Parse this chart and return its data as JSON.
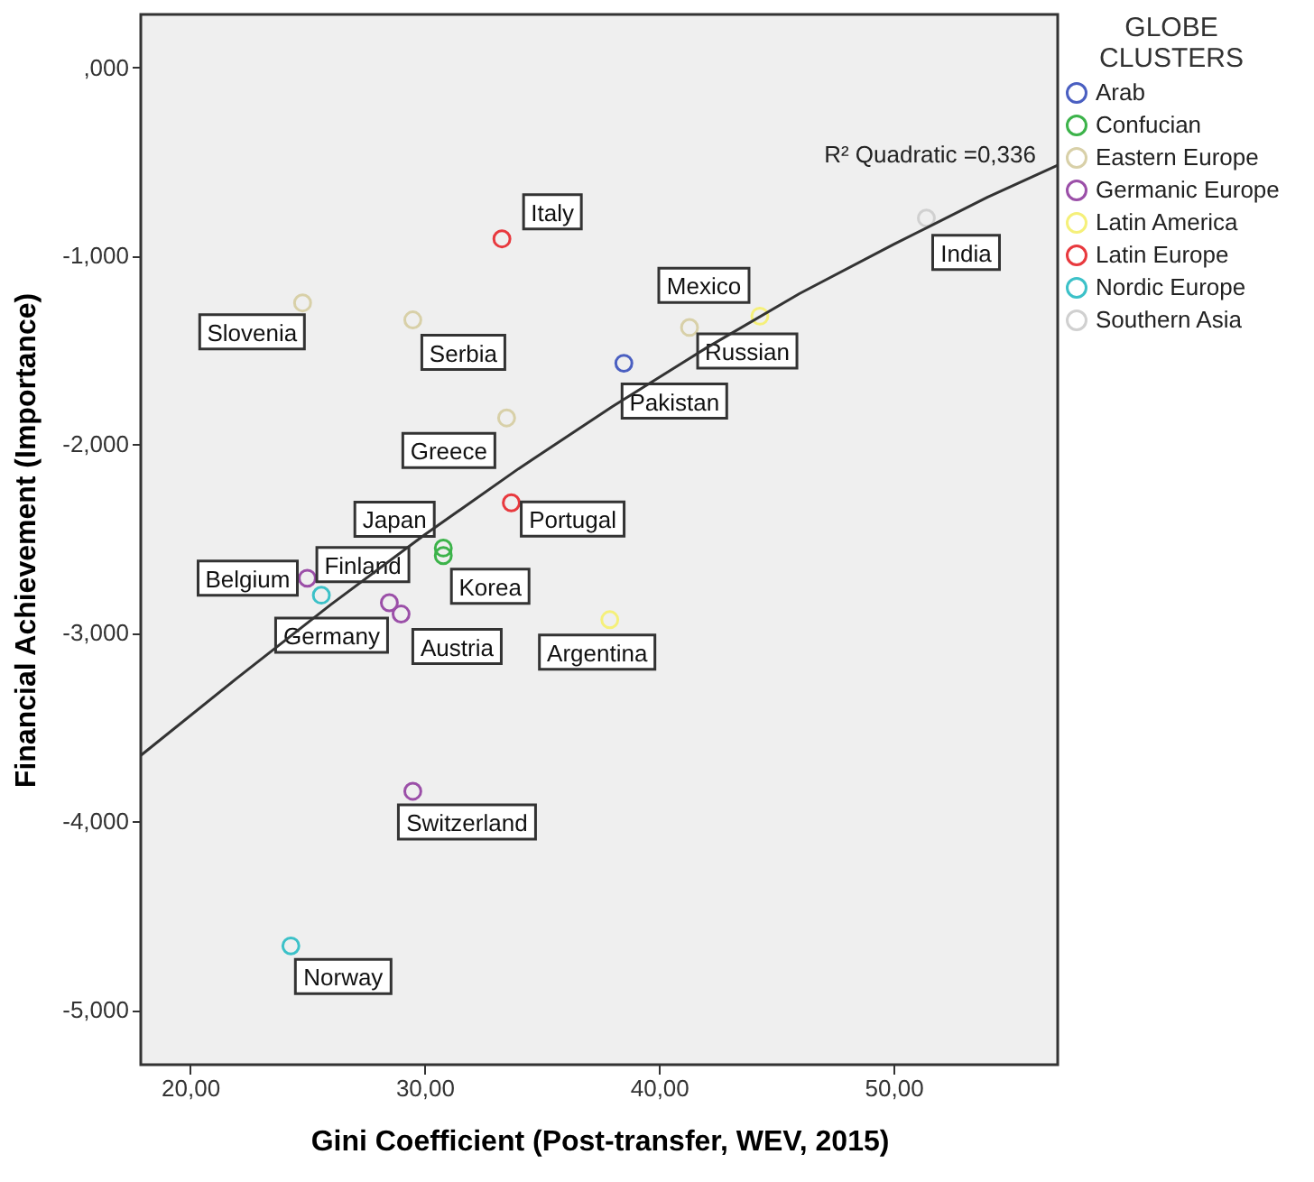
{
  "chart_data": {
    "type": "scatter",
    "xlabel": "Gini Coefficient (Post-transfer, WEV, 2015)",
    "ylabel": "Financial Achievement (Importance)",
    "legend_title": "GLOBE CLUSTERS",
    "legend": "right",
    "marker": "circle",
    "xlim": [
      17.9,
      57
    ],
    "ylim": [
      -5.29,
      0.28
    ],
    "xticks": [
      {
        "value": 20,
        "label": "20,00"
      },
      {
        "value": 30,
        "label": "30,00"
      },
      {
        "value": 40,
        "label": "40,00"
      },
      {
        "value": 50,
        "label": "50,00"
      }
    ],
    "yticks": [
      {
        "value": 0,
        "label": ",000"
      },
      {
        "value": -1,
        "label": "-1,000"
      },
      {
        "value": -2,
        "label": "-2,000"
      },
      {
        "value": -3,
        "label": "-3,000"
      },
      {
        "value": -4,
        "label": "-4,000"
      },
      {
        "value": -5,
        "label": "-5,000"
      }
    ],
    "series": [
      {
        "name": "Arab",
        "color": "#4a5fc1",
        "x": [
          38.5
        ],
        "values": [
          -1.57
        ]
      },
      {
        "name": "Confucian",
        "color": "#3cb34a",
        "x": [
          30.8,
          30.8
        ],
        "values": [
          -2.55,
          -2.59
        ]
      },
      {
        "name": "Eastern Europe",
        "color": "#d8d0a8",
        "x": [
          24.8,
          29.5,
          41.3,
          33.5
        ],
        "values": [
          -1.25,
          -1.34,
          -1.38,
          -1.86
        ]
      },
      {
        "name": "Germanic Europe",
        "color": "#9b4fa8",
        "x": [
          25.0,
          28.5,
          29.0,
          29.5
        ],
        "values": [
          -2.71,
          -2.84,
          -2.9,
          -3.84
        ]
      },
      {
        "name": "Latin America",
        "color": "#f5f07a",
        "x": [
          44.3,
          37.9
        ],
        "values": [
          -1.32,
          -2.93
        ]
      },
      {
        "name": "Latin Europe",
        "color": "#e8393e",
        "x": [
          33.3,
          33.7
        ],
        "values": [
          -0.91,
          -2.31
        ]
      },
      {
        "name": "Nordic Europe",
        "color": "#3cc1c8",
        "x": [
          25.6,
          24.3
        ],
        "values": [
          -2.8,
          -4.66
        ]
      },
      {
        "name": "Southern Asia",
        "color": "#d0d0d0",
        "x": [
          51.4
        ],
        "values": [
          -0.8
        ]
      },
      {
        "type": "line",
        "marker": "none",
        "color": "#333333",
        "x": [
          17.9,
          22,
          26,
          30,
          34,
          38,
          42,
          46,
          50,
          54,
          57
        ],
        "values": [
          -3.65,
          -3.24,
          -2.85,
          -2.48,
          -2.13,
          -1.8,
          -1.49,
          -1.2,
          -0.94,
          -0.69,
          -0.52
        ]
      }
    ],
    "annotations": [
      "R² Quadratic =0,336",
      {
        "text": "Italy",
        "x": 33.3,
        "y": -0.91
      },
      {
        "text": "India",
        "x": 51.4,
        "y": -0.8
      },
      {
        "text": "Slovenia",
        "x": 24.8,
        "y": -1.25
      },
      {
        "text": "Serbia",
        "x": 29.5,
        "y": -1.34
      },
      {
        "text": "Mexico",
        "x": 44.3,
        "y": -1.32
      },
      {
        "text": "Russian",
        "x": 41.3,
        "y": -1.38
      },
      {
        "text": "Pakistan",
        "x": 38.5,
        "y": -1.57
      },
      {
        "text": "Greece",
        "x": 33.5,
        "y": -1.86
      },
      {
        "text": "Portugal",
        "x": 33.7,
        "y": -2.31
      },
      {
        "text": "Japan",
        "x": 30.8,
        "y": -2.55
      },
      {
        "text": "Korea",
        "x": 30.8,
        "y": -2.59
      },
      {
        "text": "Belgium",
        "x": 25.0,
        "y": -2.71
      },
      {
        "text": "Finland",
        "x": 25.6,
        "y": -2.8
      },
      {
        "text": "Germany",
        "x": 28.5,
        "y": -2.84
      },
      {
        "text": "Austria",
        "x": 29.0,
        "y": -2.9
      },
      {
        "text": "Argentina",
        "x": 37.9,
        "y": -2.93
      },
      {
        "text": "Switzerland",
        "x": 29.5,
        "y": -3.84
      },
      {
        "text": "Norway",
        "x": 24.3,
        "y": -4.66
      }
    ]
  }
}
